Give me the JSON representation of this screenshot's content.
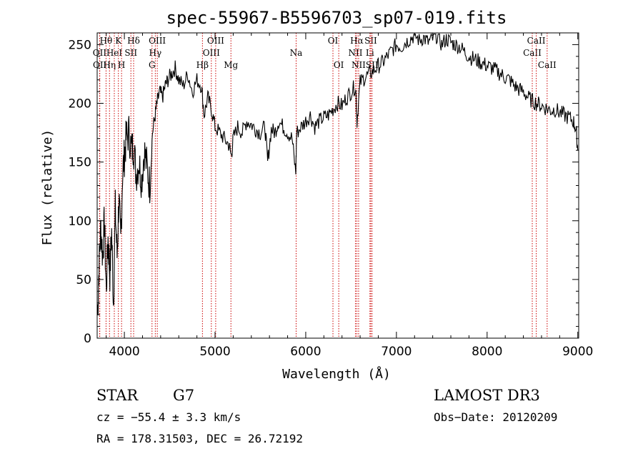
{
  "chart_data": {
    "type": "line",
    "title": "spec-55967-B5596703_sp07-019.fits",
    "xlabel": "Wavelength (Å)",
    "ylabel": "Flux (relative)",
    "xlim": [
      3700,
      9010
    ],
    "ylim": [
      0,
      260
    ],
    "xticks": [
      4000,
      5000,
      6000,
      7000,
      8000,
      9000
    ],
    "yticks": [
      0,
      50,
      100,
      150,
      200,
      250
    ],
    "spectrum_x": [
      3705,
      3720,
      3740,
      3760,
      3780,
      3800,
      3820,
      3840,
      3860,
      3880,
      3900,
      3920,
      3940,
      3960,
      3980,
      4000,
      4020,
      4050,
      4080,
      4100,
      4130,
      4160,
      4190,
      4220,
      4250,
      4280,
      4310,
      4340,
      4360,
      4390,
      4420,
      4450,
      4480,
      4520,
      4560,
      4600,
      4650,
      4700,
      4750,
      4800,
      4850,
      4880,
      4920,
      4960,
      5000,
      5050,
      5100,
      5150,
      5180,
      5200,
      5250,
      5300,
      5350,
      5400,
      5450,
      5500,
      5550,
      5580,
      5620,
      5660,
      5700,
      5750,
      5800,
      5850,
      5890,
      5900,
      5950,
      6000,
      6050,
      6100,
      6150,
      6200,
      6250,
      6300,
      6350,
      6400,
      6450,
      6500,
      6550,
      6565,
      6600,
      6650,
      6700,
      6750,
      6800,
      6850,
      6900,
      6950,
      7000,
      7050,
      7100,
      7150,
      7200,
      7250,
      7300,
      7350,
      7400,
      7450,
      7500,
      7550,
      7600,
      7650,
      7700,
      7750,
      7800,
      7850,
      7900,
      7950,
      8000,
      8050,
      8100,
      8150,
      8200,
      8250,
      8300,
      8350,
      8400,
      8450,
      8500,
      8550,
      8600,
      8650,
      8700,
      8750,
      8800,
      8850,
      8900,
      8950,
      8980,
      9000
    ],
    "spectrum_y": [
      20,
      60,
      95,
      70,
      100,
      40,
      85,
      55,
      90,
      30,
      110,
      70,
      120,
      80,
      140,
      155,
      170,
      175,
      160,
      165,
      140,
      150,
      135,
      160,
      145,
      130,
      175,
      190,
      200,
      210,
      205,
      215,
      220,
      225,
      230,
      220,
      215,
      225,
      210,
      220,
      215,
      190,
      205,
      195,
      180,
      175,
      170,
      165,
      155,
      170,
      180,
      175,
      185,
      182,
      178,
      175,
      180,
      150,
      178,
      175,
      185,
      180,
      175,
      170,
      140,
      175,
      180,
      185,
      190,
      180,
      185,
      188,
      190,
      195,
      200,
      198,
      205,
      210,
      215,
      185,
      218,
      222,
      225,
      228,
      232,
      235,
      240,
      245,
      250,
      248,
      252,
      255,
      258,
      254,
      256,
      252,
      255,
      258,
      250,
      255,
      252,
      250,
      248,
      244,
      240,
      238,
      236,
      234,
      232,
      230,
      228,
      225,
      222,
      220,
      215,
      212,
      210,
      205,
      202,
      200,
      198,
      196,
      194,
      195,
      192,
      190,
      188,
      185,
      178,
      160
    ]
  },
  "line_marks": [
    {
      "label": "OII",
      "wave": 3727,
      "row": 2
    },
    {
      "label": "OII",
      "wave": 3729,
      "row": 3
    },
    {
      "label": "Hθ",
      "wave": 3798,
      "row": 1
    },
    {
      "label": "Hη",
      "wave": 3836,
      "row": 3
    },
    {
      "label": "HeI",
      "wave": 3889,
      "row": 2
    },
    {
      "label": "K",
      "wave": 3934,
      "row": 1
    },
    {
      "label": "SII",
      "wave": 4072,
      "row": 2
    },
    {
      "label": "H",
      "wave": 3969,
      "row": 3
    },
    {
      "label": "Hδ",
      "wave": 4102,
      "row": 1
    },
    {
      "label": "G",
      "wave": 4305,
      "row": 3
    },
    {
      "label": "Hγ",
      "wave": 4341,
      "row": 2
    },
    {
      "label": "OIII",
      "wave": 4363,
      "row": 1
    },
    {
      "label": "Hβ",
      "wave": 4861,
      "row": 3
    },
    {
      "label": "OIII",
      "wave": 4959,
      "row": 2
    },
    {
      "label": "OIII",
      "wave": 5007,
      "row": 1
    },
    {
      "label": "Mg",
      "wave": 5175,
      "row": 3
    },
    {
      "label": "Na",
      "wave": 5894,
      "row": 2
    },
    {
      "label": "OI",
      "wave": 6300,
      "row": 1
    },
    {
      "label": "OI",
      "wave": 6364,
      "row": 3
    },
    {
      "label": "NII",
      "wave": 6548,
      "row": 2
    },
    {
      "label": "Hα",
      "wave": 6563,
      "row": 1
    },
    {
      "label": "NII",
      "wave": 6583,
      "row": 3
    },
    {
      "label": "SII",
      "wave": 6717,
      "row": 1
    },
    {
      "label": "Li",
      "wave": 6708,
      "row": 2
    },
    {
      "label": "SII",
      "wave": 6731,
      "row": 3
    },
    {
      "label": "CaII",
      "wave": 8498,
      "row": 2
    },
    {
      "label": "CaII",
      "wave": 8542,
      "row": 1
    },
    {
      "label": "CaII",
      "wave": 8662,
      "row": 3
    }
  ],
  "info": {
    "obj_class": "STAR",
    "subclass": "G7",
    "survey": "LAMOST DR3",
    "cz": "cz = −55.4 ± 3.3 km/s",
    "obs_date": "Obs−Date: 20120209",
    "coords": "RA = 178.31503, DEC =  26.72192"
  },
  "colors": {
    "spectrum": "#000000",
    "line_marks": "#cc0000",
    "axes": "#000000"
  }
}
